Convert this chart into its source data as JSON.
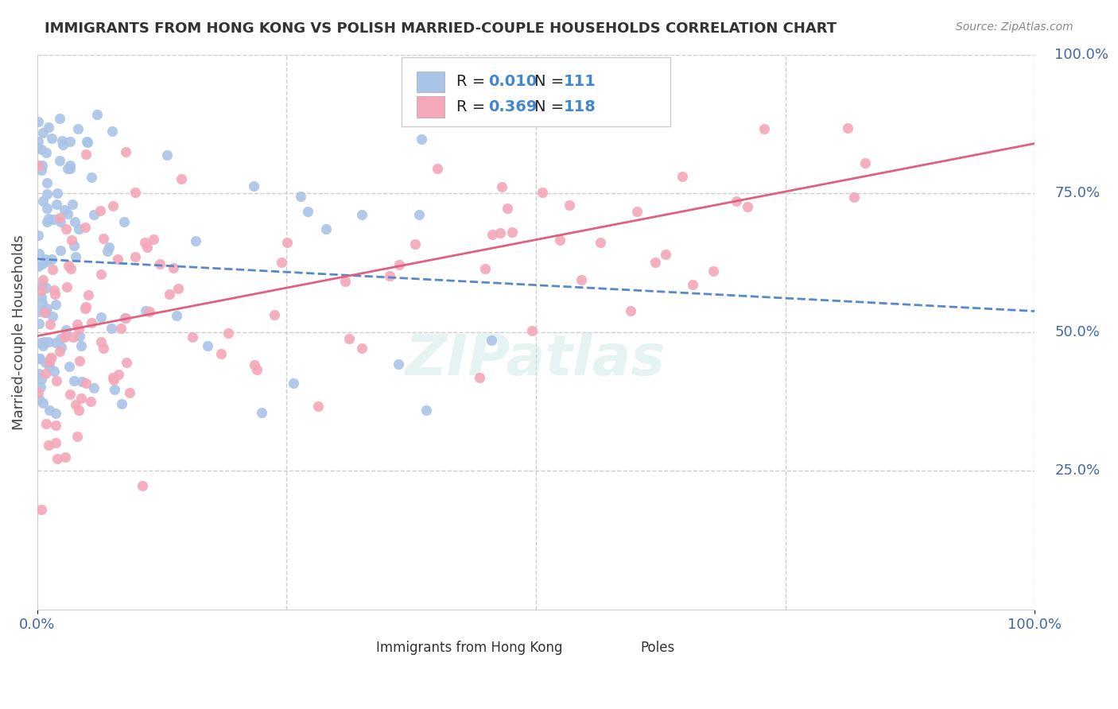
{
  "title": "IMMIGRANTS FROM HONG KONG VS POLISH MARRIED-COUPLE HOUSEHOLDS CORRELATION CHART",
  "source": "Source: ZipAtlas.com",
  "ylabel": "Married-couple Households",
  "hk_R": 0.01,
  "hk_N": 111,
  "poles_R": 0.369,
  "poles_N": 118,
  "hk_color": "#aac4e8",
  "poles_color": "#f4a8b8",
  "hk_line_color": "#5588cc",
  "poles_line_color": "#e06080",
  "background_color": "#ffffff",
  "grid_color": "#cccccc",
  "title_color": "#333333",
  "axis_label_color": "#4466aa",
  "watermark": "ZIPatlas",
  "legend_value_color": "#4488cc"
}
